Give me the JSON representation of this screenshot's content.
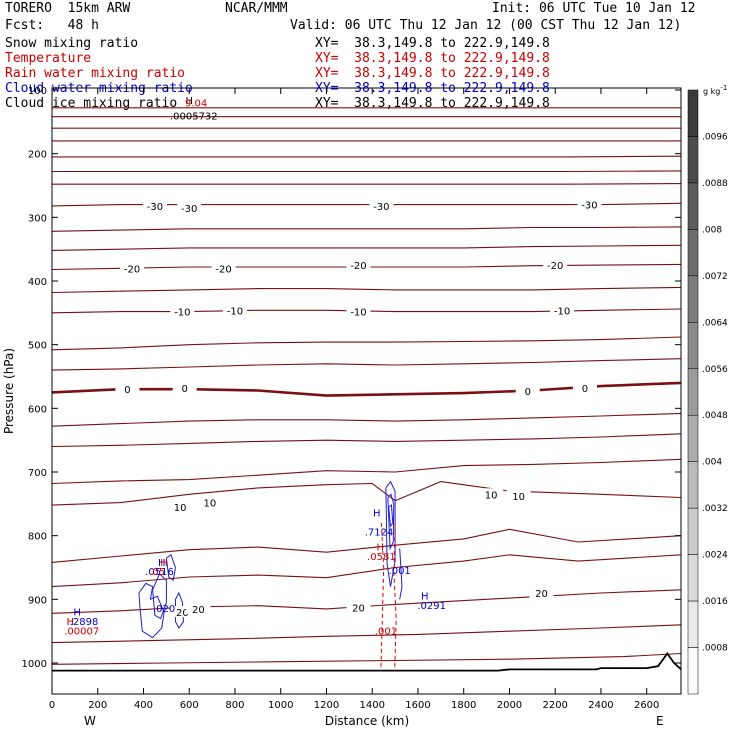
{
  "header": {
    "model": "TORERO  15km ARW",
    "org": "NCAR/MMM",
    "init": "Init: 06 UTC Tue 10 Jan 12",
    "fcst": "Fcst:   48 h",
    "valid": "Valid: 06 UTC Thu 12 Jan 12 (00 CST Thu 12 Jan 12)"
  },
  "fields": [
    {
      "name": "Snow mixing ratio",
      "xy": "XY=  38.3,149.8 to 222.9,149.8",
      "color": "#000000"
    },
    {
      "name": "Temperature",
      "xy": "XY=  38.3,149.8 to 222.9,149.8",
      "color": "#cc0000"
    },
    {
      "name": "Rain water mixing ratio",
      "xy": "XY=  38.3,149.8 to 222.9,149.8",
      "color": "#cc0000"
    },
    {
      "name": "Cloud water mixing ratio",
      "xy": "XY=  38.3,149.8 to 222.9,149.8",
      "color": "#0000cc"
    },
    {
      "name": "Cloud ice mixing ratio",
      "xy": "XY=  38.3,149.8 to 222.9,149.8",
      "color": "#000000"
    }
  ],
  "chart_data": {
    "type": "contour",
    "xlabel": "Distance (km)",
    "ylabel": "Pressure (hPa)",
    "xlim": [
      0,
      2750
    ],
    "ylim": [
      1050,
      100
    ],
    "x_ticks": [
      0,
      200,
      400,
      600,
      800,
      1000,
      1200,
      1400,
      1600,
      1800,
      2000,
      2200,
      2400,
      2600
    ],
    "y_ticks": [
      100,
      200,
      300,
      400,
      500,
      600,
      700,
      800,
      900,
      1000
    ],
    "x_end_labels": {
      "left": "W",
      "right": "E"
    },
    "colorbar": {
      "unit": "g kg",
      "unit_exp": "-1",
      "levels": [
        ".0096",
        ".0088",
        ".008",
        ".0072",
        ".0064",
        ".0056",
        ".0048",
        ".004",
        ".0032",
        ".0024",
        ".0016",
        ".0008"
      ]
    },
    "temperature_contours": [
      {
        "x": [
          0,
          500,
          1000,
          1500,
          2000,
          2500,
          2750
        ],
        "p": [
          1002,
          1000,
          998,
          996,
          994,
          990,
          985
        ]
      },
      {
        "x": [
          0,
          400,
          800,
          1200,
          1600,
          2000,
          2400,
          2750
        ],
        "p": [
          968,
          965,
          962,
          958,
          955,
          950,
          945,
          940
        ]
      },
      {
        "x": [
          0,
          300,
          600,
          900,
          1200,
          1500,
          1800,
          2100,
          2400,
          2750
        ],
        "p": [
          922,
          918,
          912,
          910,
          915,
          908,
          902,
          896,
          890,
          885
        ]
      },
      {
        "x": [
          0,
          300,
          600,
          900,
          1200,
          1500,
          1800,
          2000,
          2300,
          2750
        ],
        "p": [
          880,
          874,
          865,
          862,
          866,
          850,
          840,
          830,
          840,
          830
        ]
      },
      {
        "x": [
          0,
          300,
          600,
          900,
          1200,
          1500,
          1800,
          2000,
          2300,
          2750
        ],
        "p": [
          842,
          832,
          822,
          818,
          826,
          815,
          805,
          790,
          810,
          800
        ]
      },
      {
        "x": [
          0,
          300,
          600,
          900,
          1200,
          1400,
          1500,
          1700,
          2000,
          2400,
          2750
        ],
        "p": [
          752,
          748,
          735,
          725,
          720,
          718,
          745,
          715,
          730,
          735,
          740
        ]
      },
      {
        "x": [
          0,
          300,
          600,
          900,
          1200,
          1500,
          1800,
          2100,
          2400,
          2750
        ],
        "p": [
          718,
          714,
          712,
          705,
          698,
          700,
          690,
          688,
          685,
          680
        ]
      },
      {
        "x": [
          0,
          300,
          600,
          900,
          1200,
          1500,
          1800,
          2100,
          2400,
          2750
        ],
        "p": [
          660,
          658,
          655,
          652,
          650,
          652,
          650,
          648,
          645,
          640
        ]
      },
      {
        "x": [
          0,
          300,
          600,
          900,
          1200,
          1500,
          1800,
          2100,
          2400,
          2750
        ],
        "p": [
          628,
          624,
          620,
          618,
          618,
          620,
          618,
          615,
          612,
          608
        ]
      },
      {
        "x": [
          0,
          300,
          600,
          900,
          1200,
          1500,
          1800,
          2100,
          2400,
          2750
        ],
        "p": [
          575,
          570,
          570,
          572,
          580,
          578,
          576,
          572,
          565,
          560
        ],
        "bold": true
      },
      {
        "x": [
          0,
          300,
          600,
          900,
          1200,
          1500,
          1800,
          2100,
          2400,
          2750
        ],
        "p": [
          540,
          538,
          535,
          532,
          530,
          532,
          530,
          528,
          525,
          522
        ]
      },
      {
        "x": [
          0,
          300,
          600,
          900,
          1200,
          1500,
          1800,
          2100,
          2400,
          2750
        ],
        "p": [
          508,
          505,
          500,
          497,
          496,
          496,
          495,
          494,
          492,
          488
        ]
      },
      {
        "x": [
          0,
          300,
          600,
          900,
          1200,
          1500,
          1800,
          2100,
          2400,
          2750
        ],
        "p": [
          450,
          448,
          448,
          446,
          446,
          448,
          448,
          448,
          446,
          444
        ]
      },
      {
        "x": [
          0,
          300,
          600,
          900,
          1200,
          1500,
          1800,
          2100,
          2400,
          2750
        ],
        "p": [
          418,
          416,
          414,
          412,
          412,
          414,
          414,
          414,
          412,
          410
        ]
      },
      {
        "x": [
          0,
          300,
          600,
          900,
          1200,
          1500,
          1800,
          2100,
          2400,
          2750
        ],
        "p": [
          382,
          380,
          378,
          378,
          378,
          378,
          378,
          376,
          375,
          374
        ]
      },
      {
        "x": [
          0,
          300,
          600,
          900,
          1200,
          1500,
          1800,
          2100,
          2400,
          2750
        ],
        "p": [
          352,
          350,
          348,
          348,
          348,
          348,
          348,
          346,
          345,
          344
        ]
      },
      {
        "x": [
          0,
          300,
          600,
          900,
          1200,
          1500,
          1800,
          2100,
          2400,
          2750
        ],
        "p": [
          322,
          320,
          318,
          318,
          318,
          318,
          318,
          316,
          316,
          315
        ]
      },
      {
        "x": [
          0,
          300,
          600,
          900,
          1200,
          1500,
          1800,
          2100,
          2400,
          2750
        ],
        "p": [
          282,
          280,
          280,
          280,
          280,
          280,
          280,
          280,
          280,
          278
        ]
      },
      {
        "x": [
          0,
          750,
          1500,
          2250,
          2750
        ],
        "p": [
          248,
          248,
          248,
          248,
          247
        ]
      },
      {
        "x": [
          0,
          750,
          1500,
          2250,
          2750
        ],
        "p": [
          228,
          228,
          228,
          228,
          227
        ]
      },
      {
        "x": [
          0,
          750,
          1500,
          2250,
          2750
        ],
        "p": [
          205,
          205,
          205,
          205,
          204
        ]
      },
      {
        "x": [
          0,
          750,
          1500,
          2250,
          2750
        ],
        "p": [
          180,
          180,
          180,
          180,
          180
        ]
      },
      {
        "x": [
          0,
          750,
          1500,
          2250,
          2750
        ],
        "p": [
          160,
          160,
          160,
          160,
          160
        ]
      },
      {
        "x": [
          0,
          750,
          1500,
          2250,
          2750
        ],
        "p": [
          142,
          142,
          142,
          142,
          142
        ]
      },
      {
        "x": [
          0,
          750,
          1500,
          2250,
          2750
        ],
        "p": [
          128,
          128,
          128,
          128,
          128
        ]
      }
    ],
    "temperature_labels": [
      {
        "text": "-30",
        "x": 450,
        "p": 282
      },
      {
        "text": "-30",
        "x": 600,
        "p": 285
      },
      {
        "text": "-30",
        "x": 1440,
        "p": 282
      },
      {
        "text": "-30",
        "x": 2350,
        "p": 280
      },
      {
        "text": "-20",
        "x": 350,
        "p": 380
      },
      {
        "text": "-20",
        "x": 750,
        "p": 380
      },
      {
        "text": "-20",
        "x": 1340,
        "p": 375
      },
      {
        "text": "-20",
        "x": 2200,
        "p": 375
      },
      {
        "text": "-10",
        "x": 570,
        "p": 448
      },
      {
        "text": "-10",
        "x": 800,
        "p": 446
      },
      {
        "text": "-10",
        "x": 1340,
        "p": 448
      },
      {
        "text": "-10",
        "x": 2230,
        "p": 446
      },
      {
        "text": "0",
        "x": 330,
        "p": 570
      },
      {
        "text": "0",
        "x": 580,
        "p": 568
      },
      {
        "text": "0",
        "x": 2080,
        "p": 573
      },
      {
        "text": "0",
        "x": 2330,
        "p": 568
      },
      {
        "text": "10",
        "x": 560,
        "p": 755
      },
      {
        "text": "10",
        "x": 690,
        "p": 748
      },
      {
        "text": "10",
        "x": 1920,
        "p": 735
      },
      {
        "text": "10",
        "x": 2040,
        "p": 738
      },
      {
        "text": "20",
        "x": 570,
        "p": 920
      },
      {
        "text": "20",
        "x": 640,
        "p": 915
      },
      {
        "text": "20",
        "x": 1340,
        "p": 913
      },
      {
        "text": "20",
        "x": 2140,
        "p": 890
      }
    ],
    "cloud_water_contours": [
      {
        "x": [
          380,
          410,
          440,
          430,
          460,
          490,
          480,
          440,
          395,
          385,
          380
        ],
        "p": [
          890,
          875,
          880,
          900,
          895,
          920,
          945,
          960,
          950,
          915,
          890
        ]
      },
      {
        "x": [
          440,
          470,
          500,
          500,
          475,
          450,
          440
        ],
        "p": [
          885,
          860,
          870,
          905,
          930,
          925,
          885
        ]
      },
      {
        "x": [
          540,
          555,
          570,
          575,
          555,
          540,
          540
        ],
        "p": [
          900,
          890,
          905,
          935,
          945,
          935,
          900
        ]
      },
      {
        "x": [
          500,
          520,
          540,
          530,
          510,
          500
        ],
        "p": [
          835,
          830,
          850,
          870,
          865,
          835
        ]
      },
      {
        "x": [
          1460,
          1480,
          1500,
          1500,
          1480,
          1465,
          1460
        ],
        "p": [
          725,
          715,
          730,
          840,
          880,
          845,
          725
        ]
      },
      {
        "x": [
          1468,
          1482,
          1494,
          1492,
          1478,
          1468
        ],
        "p": [
          740,
          735,
          750,
          810,
          820,
          740
        ]
      },
      {
        "x": [
          1472,
          1484,
          1490,
          1480,
          1472
        ],
        "p": [
          755,
          752,
          780,
          785,
          755
        ]
      },
      {
        "x": [
          1520,
          1530,
          1520
        ],
        "p": [
          820,
          880,
          900
        ]
      }
    ],
    "rain_contours": [
      {
        "x": [
          1440,
          1450,
          1445,
          1440,
          1438
        ],
        "p": [
          780,
          850,
          920,
          980,
          1010
        ]
      },
      {
        "x": [
          1500,
          1495,
          1505,
          1500,
          1498
        ],
        "p": [
          780,
          860,
          930,
          990,
          1010
        ]
      }
    ],
    "annotations": [
      {
        "text": "H",
        "x": 600,
        "p": 122,
        "color": "#000000"
      },
      {
        "text": "9.04",
        "x": 630,
        "p": 126,
        "color": "#cc0000"
      },
      {
        "text": ".0005732",
        "x": 620,
        "p": 146,
        "color": "#000000"
      },
      {
        "text": "H",
        "x": 480,
        "p": 848,
        "color": "#0000cc"
      },
      {
        "text": "H",
        "x": 490,
        "p": 848,
        "color": "#cc0000"
      },
      {
        "text": ".0516",
        "x": 470,
        "p": 862,
        "color": "#0000cc"
      },
      {
        "text": ".05",
        "x": 460,
        "p": 862,
        "color": "#cc0000"
      },
      {
        "text": ".7124",
        "x": 1430,
        "p": 800,
        "color": "#0000cc"
      },
      {
        "text": "H",
        "x": 1420,
        "p": 770,
        "color": "#0000cc"
      },
      {
        "text": "H",
        "x": 1435,
        "p": 823,
        "color": "#cc0000"
      },
      {
        "text": ".0581",
        "x": 1440,
        "p": 838,
        "color": "#cc0000"
      },
      {
        "text": ".001",
        "x": 1520,
        "p": 860,
        "color": "#0000cc"
      },
      {
        "text": "H",
        "x": 1630,
        "p": 900,
        "color": "#0000cc"
      },
      {
        "text": ".0291",
        "x": 1660,
        "p": 915,
        "color": "#0000cc"
      },
      {
        "text": "H",
        "x": 110,
        "p": 925,
        "color": "#0000cc"
      },
      {
        "text": ".2898",
        "x": 140,
        "p": 940,
        "color": "#0000cc"
      },
      {
        "text": "H",
        "x": 80,
        "p": 940,
        "color": "#cc0000"
      },
      {
        "text": ".00007",
        "x": 130,
        "p": 955,
        "color": "#cc0000"
      },
      {
        "text": ".001",
        "x": 1460,
        "p": 955,
        "color": "#cc0000"
      },
      {
        "text": ".020",
        "x": 490,
        "p": 920,
        "color": "#0000cc"
      }
    ],
    "terrain": {
      "x": [
        0,
        1000,
        1950,
        2000,
        2380,
        2400,
        2600,
        2650,
        2690,
        2720,
        2750
      ],
      "p": [
        1012,
        1012,
        1012,
        1010,
        1010,
        1008,
        1008,
        1005,
        985,
        1000,
        1010
      ]
    },
    "colors": {
      "temperature": "#7a1010",
      "cloud_water": "#2020cc",
      "rain": "#dd0000",
      "terrain": "#000000"
    }
  }
}
